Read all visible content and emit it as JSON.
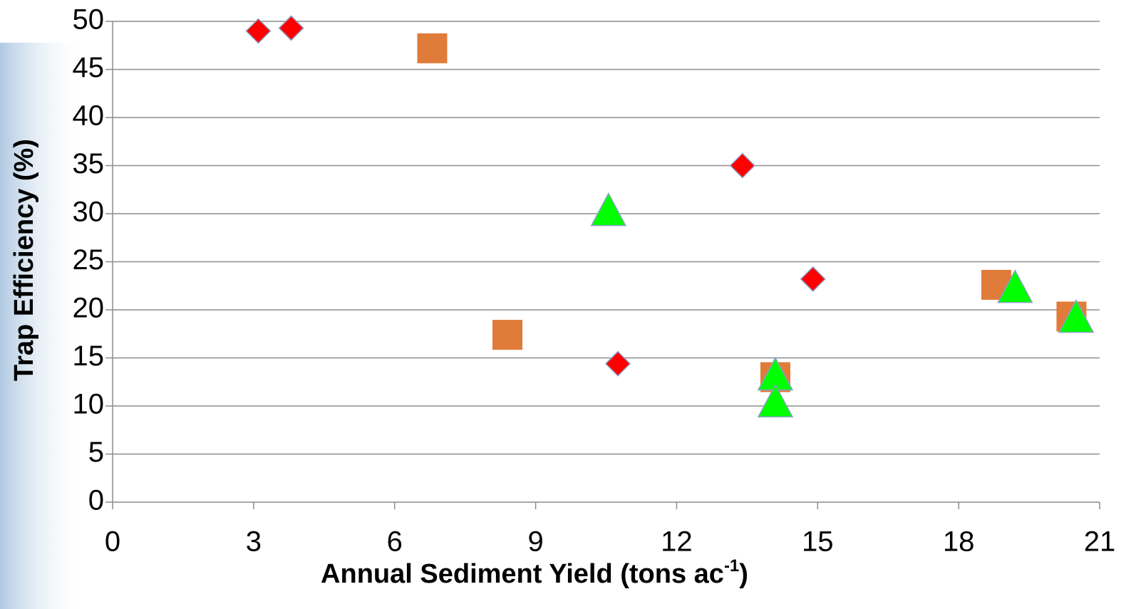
{
  "chart_data": {
    "type": "scatter",
    "xlabel_parts": [
      "Annual Sediment Yield (tons ac",
      "-1",
      ")"
    ],
    "ylabel": "Trap Efficiency (%)",
    "xlim": [
      0,
      21
    ],
    "xticks": [
      0,
      3,
      6,
      9,
      12,
      15,
      18,
      21
    ],
    "ylim": [
      0,
      50
    ],
    "yticks": [
      0,
      5,
      10,
      15,
      20,
      25,
      30,
      35,
      40,
      45,
      50
    ],
    "grid": true,
    "series": [
      {
        "color": "#ff0000",
        "marker": "diamond",
        "x": [
          3.1,
          3.8,
          13.4,
          14.9,
          10.75
        ],
        "values": [
          49.0,
          49.3,
          35.0,
          23.2,
          14.4
        ]
      },
      {
        "color": "#e07b39",
        "marker": "square",
        "x": [
          6.8,
          8.4,
          14.1,
          18.8,
          20.4
        ],
        "values": [
          47.2,
          17.4,
          13.0,
          22.6,
          19.3
        ]
      },
      {
        "color": "#00ff00",
        "marker": "triangle",
        "x": [
          10.55,
          14.1,
          14.1,
          19.2,
          20.5
        ],
        "values": [
          30.1,
          13.0,
          10.2,
          22.1,
          19.0
        ]
      }
    ]
  }
}
